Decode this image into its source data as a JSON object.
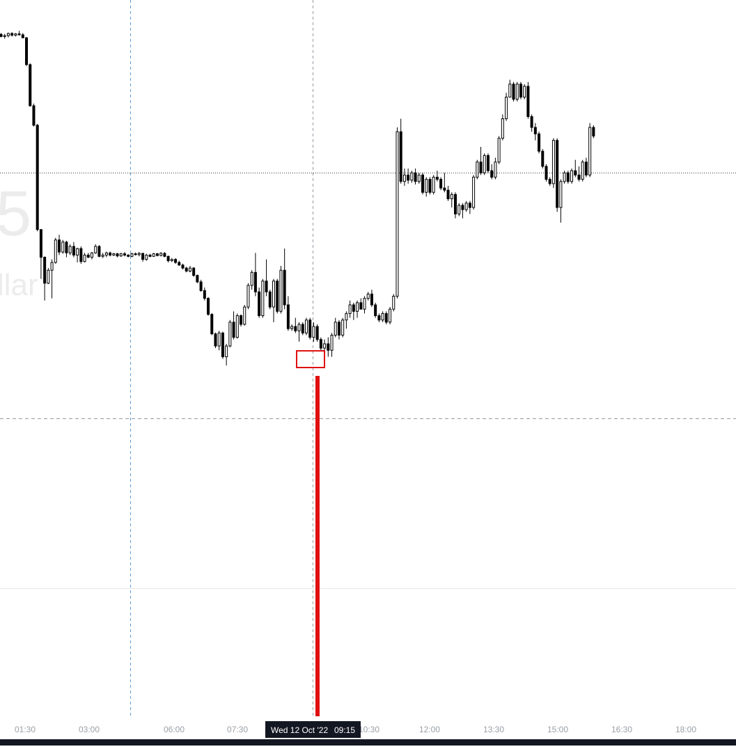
{
  "chart_data": {
    "type": "candlestick",
    "watermark": {
      "symbol_fragment": "5",
      "name_fragment": "llar"
    },
    "x_axis": {
      "unit": "time of day",
      "ticks": [
        "01:30",
        "03:00",
        "06:00",
        "07:30",
        "10:30",
        "12:00",
        "13:30",
        "15:00",
        "16:30",
        "18:00"
      ]
    },
    "crosshair": {
      "label_date": "Wed 12 Oct '22",
      "label_time": "09:15"
    },
    "colors": {
      "candle": "#000000",
      "grid": "#e6e6e6",
      "crosshair": "#9598a1",
      "session_break": "#5b9bd5",
      "annotation": "#e01010",
      "axis_text": "#9aa0a6",
      "axis_label_bg": "#131722"
    },
    "candles_ohlc": [
      [
        62.5,
        62.8,
        61.8,
        62.0
      ],
      [
        62.0,
        62.6,
        61.5,
        62.2
      ],
      [
        62.2,
        62.9,
        61.8,
        62.7
      ],
      [
        62.7,
        63.0,
        62.0,
        62.3
      ],
      [
        62.3,
        62.8,
        62.0,
        62.6
      ],
      [
        62.6,
        63.3,
        62.2,
        62.4
      ],
      [
        62.4,
        62.8,
        61.6,
        61.7
      ],
      [
        61.7,
        61.9,
        55.2,
        55.5
      ],
      [
        55.5,
        55.8,
        45.8,
        46.0
      ],
      [
        46.0,
        46.5,
        41.2,
        41.5
      ],
      [
        41.5,
        41.8,
        17.0,
        17.4
      ],
      [
        17.4,
        17.5,
        6.0,
        11.0
      ],
      [
        11.0,
        11.2,
        1.0,
        5.0
      ],
      [
        5.0,
        8.5,
        4.8,
        8.0
      ],
      [
        8.0,
        10.5,
        1.5,
        9.8
      ],
      [
        9.8,
        15.5,
        9.5,
        15.0
      ],
      [
        15.0,
        16.2,
        11.5,
        12.2
      ],
      [
        12.2,
        15.0,
        11.8,
        14.5
      ],
      [
        14.5,
        14.8,
        11.0,
        12.0
      ],
      [
        12.0,
        14.0,
        11.5,
        13.5
      ],
      [
        13.5,
        14.5,
        11.0,
        11.5
      ],
      [
        11.5,
        13.2,
        9.8,
        13.0
      ],
      [
        13.0,
        13.5,
        9.5,
        10.0
      ],
      [
        10.0,
        12.0,
        9.8,
        11.5
      ],
      [
        11.5,
        12.0,
        10.8,
        11.0
      ],
      [
        11.0,
        12.2,
        10.5,
        12.0
      ],
      [
        12.0,
        14.0,
        11.8,
        13.5
      ],
      [
        13.5,
        13.8,
        11.0,
        11.2
      ],
      [
        11.2,
        12.0,
        10.8,
        11.5
      ],
      [
        11.5,
        12.3,
        11.0,
        12.0
      ],
      [
        12.0,
        12.3,
        11.2,
        11.5
      ],
      [
        11.5,
        12.0,
        11.3,
        11.8
      ],
      [
        11.8,
        12.0,
        11.0,
        11.3
      ],
      [
        11.3,
        12.0,
        11.1,
        11.8
      ],
      [
        11.8,
        12.2,
        11.2,
        11.5
      ],
      [
        11.5,
        11.7,
        11.0,
        11.2
      ],
      [
        11.2,
        12.0,
        11.0,
        11.8
      ],
      [
        11.8,
        12.1,
        11.4,
        11.6
      ],
      [
        11.6,
        12.2,
        11.2,
        11.9
      ],
      [
        11.9,
        12.0,
        10.0,
        10.5
      ],
      [
        10.5,
        11.8,
        10.2,
        11.5
      ],
      [
        11.5,
        11.8,
        11.0,
        11.2
      ],
      [
        11.2,
        12.0,
        11.1,
        11.8
      ],
      [
        11.8,
        12.0,
        11.2,
        11.4
      ],
      [
        11.4,
        12.2,
        11.2,
        11.9
      ],
      [
        11.9,
        12.2,
        11.0,
        11.2
      ],
      [
        11.2,
        11.4,
        9.8,
        10.2
      ],
      [
        10.2,
        10.8,
        9.9,
        10.5
      ],
      [
        10.5,
        10.8,
        9.5,
        9.8
      ],
      [
        9.8,
        10.2,
        9.0,
        9.2
      ],
      [
        9.2,
        9.5,
        8.2,
        8.5
      ],
      [
        8.5,
        8.8,
        7.5,
        7.8
      ],
      [
        7.8,
        9.0,
        7.5,
        8.5
      ],
      [
        8.5,
        8.7,
        6.5,
        6.8
      ],
      [
        6.8,
        7.0,
        5.0,
        5.3
      ],
      [
        5.3,
        5.8,
        3.0,
        3.3
      ],
      [
        3.3,
        4.0,
        1.0,
        1.5
      ],
      [
        1.5,
        1.8,
        -2.5,
        -2.2
      ],
      [
        -2.2,
        -1.9,
        -7.0,
        -6.7
      ],
      [
        -6.7,
        -6.4,
        -10.0,
        -9.5
      ],
      [
        -9.5,
        -6.0,
        -10.5,
        -6.5
      ],
      [
        -6.5,
        -6.2,
        -12.5,
        -12.0
      ],
      [
        -12.0,
        -9.0,
        -14.0,
        -9.5
      ],
      [
        -9.5,
        -3.5,
        -9.8,
        -4.0
      ],
      [
        -4.0,
        -1.5,
        -8.0,
        -7.5
      ],
      [
        -7.5,
        -2.0,
        -7.8,
        -2.5
      ],
      [
        -2.5,
        -2.2,
        -5.0,
        -4.5
      ],
      [
        -4.5,
        0.0,
        -4.8,
        -0.5
      ],
      [
        -0.5,
        5.0,
        -1.0,
        4.5
      ],
      [
        4.5,
        8.0,
        3.5,
        7.5
      ],
      [
        7.5,
        12.0,
        2.0,
        3.0
      ],
      [
        3.0,
        4.0,
        -3.0,
        -2.5
      ],
      [
        -2.5,
        6.0,
        -3.0,
        5.5
      ],
      [
        5.5,
        10.5,
        2.0,
        3.0
      ],
      [
        3.0,
        3.5,
        -1.0,
        -0.5
      ],
      [
        -0.5,
        6.0,
        -4.0,
        5.5
      ],
      [
        5.5,
        6.0,
        -2.0,
        -1.5
      ],
      [
        -1.5,
        9.0,
        -2.0,
        8.0
      ],
      [
        8.0,
        13.0,
        -1.0,
        0.0
      ],
      [
        0.0,
        2.0,
        -6.0,
        -5.5
      ],
      [
        -5.5,
        -4.5,
        -6.0,
        -5.0
      ],
      [
        -5.0,
        -3.0,
        -6.5,
        -6.0
      ],
      [
        -6.0,
        -4.0,
        -8.5,
        -4.5
      ],
      [
        -4.5,
        -4.0,
        -7.0,
        -6.5
      ],
      [
        -6.5,
        -3.0,
        -7.0,
        -3.5
      ],
      [
        -3.5,
        -3.0,
        -8.0,
        -7.5
      ],
      [
        -7.5,
        -4.0,
        -8.5,
        -5.0
      ],
      [
        -5.0,
        -4.5,
        -8.5,
        -8.0
      ],
      [
        -8.0,
        -7.5,
        -10.5,
        -10.0
      ],
      [
        -10.0,
        -8.0,
        -11.0,
        -9.0
      ],
      [
        -9.0,
        -7.5,
        -12.0,
        -10.5
      ],
      [
        -10.5,
        -6.5,
        -12.0,
        -7.0
      ],
      [
        -7.0,
        -3.0,
        -7.5,
        -4.0
      ],
      [
        -4.0,
        -3.5,
        -8.0,
        -7.0
      ],
      [
        -7.0,
        -3.0,
        -7.5,
        -3.5
      ],
      [
        -3.5,
        -1.5,
        -5.5,
        -2.0
      ],
      [
        -2.0,
        1.0,
        -3.0,
        0.0
      ],
      [
        0.0,
        0.5,
        -3.5,
        -1.5
      ],
      [
        -1.5,
        1.0,
        -3.0,
        0.5
      ],
      [
        0.5,
        1.5,
        -1.0,
        -1.0
      ],
      [
        -1.0,
        2.0,
        -2.0,
        1.5
      ],
      [
        1.5,
        3.0,
        1.0,
        2.5
      ],
      [
        2.5,
        3.5,
        -0.5,
        0.0
      ],
      [
        0.0,
        0.5,
        -3.0,
        -2.5
      ],
      [
        -2.5,
        -2.0,
        -4.0,
        -3.5
      ],
      [
        -3.5,
        -1.5,
        -4.0,
        -2.0
      ],
      [
        -2.0,
        -1.5,
        -4.5,
        -4.0
      ],
      [
        -4.0,
        -0.5,
        -4.5,
        -1.0
      ],
      [
        -1.0,
        2.5,
        -1.5,
        2.0
      ],
      [
        2.0,
        41.0,
        1.5,
        40.0
      ],
      [
        40.0,
        43.0,
        28.0,
        28.5
      ],
      [
        28.5,
        31.5,
        27.5,
        30.0
      ],
      [
        30.0,
        31.5,
        28.0,
        28.8
      ],
      [
        28.8,
        31.0,
        28.2,
        30.5
      ],
      [
        30.5,
        31.5,
        27.8,
        28.5
      ],
      [
        28.5,
        30.5,
        28.0,
        30.0
      ],
      [
        30.0,
        30.5,
        25.5,
        26.0
      ],
      [
        26.0,
        29.5,
        25.0,
        29.0
      ],
      [
        29.0,
        29.5,
        25.5,
        26.0
      ],
      [
        26.0,
        30.0,
        25.5,
        29.5
      ],
      [
        29.5,
        31.0,
        28.5,
        29.0
      ],
      [
        29.0,
        29.5,
        26.5,
        27.0
      ],
      [
        27.0,
        30.5,
        26.0,
        26.5
      ],
      [
        26.5,
        27.5,
        24.0,
        24.5
      ],
      [
        24.5,
        26.0,
        22.5,
        25.5
      ],
      [
        25.5,
        26.0,
        20.0,
        21.0
      ],
      [
        21.0,
        23.5,
        20.5,
        23.0
      ],
      [
        23.0,
        23.5,
        20.0,
        22.0
      ],
      [
        22.0,
        24.0,
        21.5,
        23.5
      ],
      [
        23.5,
        24.0,
        21.0,
        22.5
      ],
      [
        22.5,
        30.0,
        22.0,
        29.5
      ],
      [
        29.5,
        33.5,
        29.0,
        33.0
      ],
      [
        33.0,
        36.5,
        30.0,
        30.5
      ],
      [
        30.5,
        35.0,
        30.0,
        34.5
      ],
      [
        34.5,
        35.0,
        30.5,
        31.0
      ],
      [
        31.0,
        32.5,
        29.0,
        29.5
      ],
      [
        29.5,
        34.0,
        29.0,
        33.0
      ],
      [
        33.0,
        39.0,
        32.5,
        38.5
      ],
      [
        38.5,
        44.0,
        38.0,
        43.0
      ],
      [
        43.0,
        49.0,
        42.5,
        48.0
      ],
      [
        48.0,
        52.0,
        48.5,
        51.0
      ],
      [
        51.0,
        51.5,
        47.0,
        47.5
      ],
      [
        47.5,
        51.5,
        47.0,
        51.0
      ],
      [
        51.0,
        51.5,
        47.5,
        48.0
      ],
      [
        48.0,
        51.0,
        47.5,
        50.5
      ],
      [
        50.5,
        51.5,
        43.0,
        43.5
      ],
      [
        43.5,
        44.0,
        40.0,
        41.0
      ],
      [
        41.0,
        42.0,
        38.0,
        39.5
      ],
      [
        39.5,
        40.0,
        35.0,
        35.5
      ],
      [
        35.5,
        36.0,
        31.5,
        32.0
      ],
      [
        32.0,
        32.5,
        28.5,
        29.0
      ],
      [
        29.0,
        29.5,
        27.5,
        28.0
      ],
      [
        28.0,
        38.5,
        27.0,
        38.0
      ],
      [
        38.0,
        38.5,
        21.5,
        22.5
      ],
      [
        22.5,
        29.0,
        19.0,
        28.5
      ],
      [
        28.5,
        31.0,
        28.0,
        30.5
      ],
      [
        30.5,
        31.0,
        28.0,
        28.5
      ],
      [
        28.5,
        31.5,
        28.0,
        31.0
      ],
      [
        31.0,
        33.5,
        29.5,
        30.0
      ],
      [
        30.0,
        32.0,
        28.5,
        29.0
      ],
      [
        29.0,
        33.5,
        28.5,
        33.0
      ],
      [
        33.0,
        34.0,
        29.5,
        30.0
      ],
      [
        30.0,
        42.0,
        29.5,
        41.0
      ],
      [
        41.0,
        41.5,
        38.5,
        39.0
      ]
    ]
  }
}
